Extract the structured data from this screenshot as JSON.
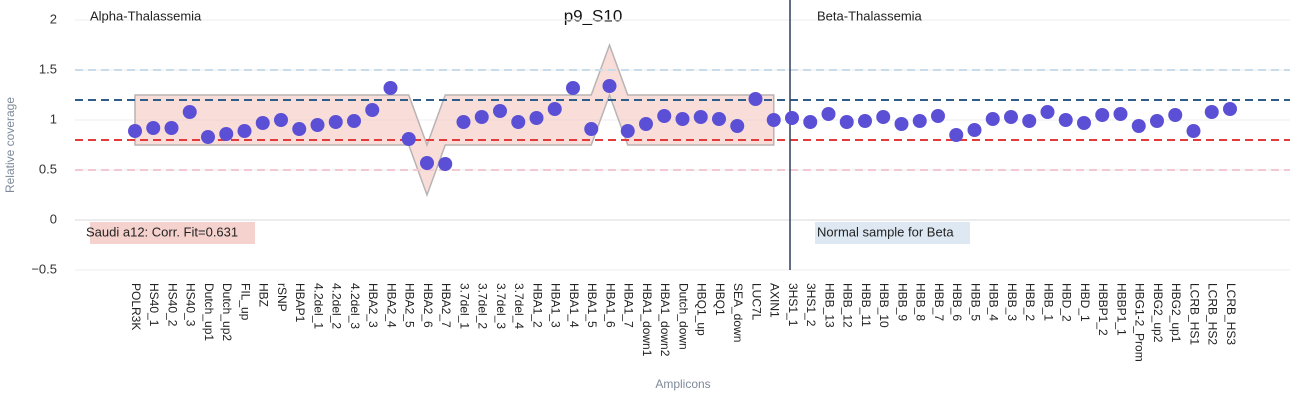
{
  "chart_data": {
    "type": "scatter",
    "title": "p9_S10",
    "x_label": "Amplicons",
    "y_label": "Relative coverage",
    "categories": [
      "POLR3K",
      "HS40_1",
      "HS40_2",
      "HS40_3",
      "Dutch_up1",
      "Dutch_up2",
      "FIL_up",
      "HBZ",
      "rSNP",
      "HBAP1",
      "4.2del_1",
      "4.2del_2",
      "4.2del_3",
      "HBA2_3",
      "HBA2_4",
      "HBA2_5",
      "HBA2_6",
      "HBA2_7",
      "3.7del_1",
      "3.7del_2",
      "3.7del_3",
      "3.7del_4",
      "HBA1_2",
      "HBA1_3",
      "HBA1_4",
      "HBA1_5",
      "HBA1_6",
      "HBA1_7",
      "HBA1_down1",
      "HBA1_down2",
      "Dutch_down",
      "HBQ1_up",
      "HBQ1",
      "SEA_down",
      "LUC7L",
      "AXIN1",
      "3HS1_1",
      "3HS1_2",
      "HBB_13",
      "HBB_12",
      "HBB_11",
      "HBB_10",
      "HBB_9",
      "HBB_8",
      "HBB_7",
      "HBB_6",
      "HBB_5",
      "HBB_4",
      "HBB_3",
      "HBB_2",
      "HBB_1",
      "HBD_2",
      "HBD_1",
      "HBBP1_2",
      "HBBP1_1",
      "HBG1-2_Prom",
      "HBG2_up2",
      "HBG2_up1",
      "LCRB_HS1",
      "LCRB_HS2",
      "LCRB_HS3"
    ],
    "series": [
      {
        "color": "#5b4fd6",
        "values": [
          0.89,
          0.92,
          0.92,
          1.08,
          0.83,
          0.86,
          0.89,
          0.97,
          1.0,
          0.91,
          0.95,
          0.98,
          0.99,
          1.1,
          1.32,
          0.81,
          0.57,
          0.56,
          0.98,
          1.03,
          1.09,
          0.98,
          1.02,
          1.11,
          1.32,
          0.91,
          1.34,
          0.89,
          0.96,
          1.04,
          1.01,
          1.03,
          1.01,
          0.94,
          1.21,
          1.0,
          1.02,
          0.98,
          1.06,
          0.98,
          0.99,
          1.03,
          0.96,
          0.99,
          1.04,
          0.85,
          0.9,
          1.01,
          1.03,
          0.99,
          1.08,
          1.0,
          0.97,
          1.05,
          1.06,
          0.94,
          0.99,
          1.05,
          0.89,
          1.08,
          1.11
        ]
      }
    ],
    "band": {
      "color": "#f4c6c0",
      "upper": [
        1.25,
        1.25,
        1.25,
        1.25,
        1.25,
        1.25,
        1.25,
        1.25,
        1.25,
        1.25,
        1.25,
        1.25,
        1.25,
        1.25,
        1.25,
        1.25,
        0.75,
        1.25,
        1.25,
        1.25,
        1.25,
        1.25,
        1.25,
        1.25,
        1.25,
        1.25,
        1.75,
        1.25,
        1.25,
        1.25,
        1.25,
        1.25,
        1.25,
        1.25,
        1.25,
        1.25
      ],
      "lower": [
        0.75,
        0.75,
        0.75,
        0.75,
        0.75,
        0.75,
        0.75,
        0.75,
        0.75,
        0.75,
        0.75,
        0.75,
        0.75,
        0.75,
        0.75,
        0.75,
        0.25,
        0.75,
        0.75,
        0.75,
        0.75,
        0.75,
        0.75,
        0.75,
        0.75,
        0.75,
        1.25,
        0.75,
        0.75,
        0.75,
        0.75,
        0.75,
        0.75,
        0.75,
        0.75,
        0.75
      ]
    },
    "reference_lines": [
      {
        "value": 1.5,
        "color": "#c9dcea"
      },
      {
        "value": 1.2,
        "color": "#2f5d87"
      },
      {
        "value": 0.8,
        "color": "#e23b3b"
      },
      {
        "value": 0.5,
        "color": "#f2c9d2"
      }
    ],
    "annotations": [
      {
        "text": "Alpha-Thalassemia"
      },
      {
        "text": "Beta-Thalassemia"
      },
      {
        "text": "Saudi a12: Corr. Fit=0.631",
        "color": "#f6d2ce"
      },
      {
        "text": "Normal sample for Beta",
        "color": "#dde8f3"
      }
    ],
    "ylim": [
      -0.5,
      2
    ],
    "yticks": [
      {
        "value": -0.5,
        "label": "−0.5"
      },
      0,
      0.5,
      1,
      1.5,
      2
    ],
    "grid": true
  }
}
